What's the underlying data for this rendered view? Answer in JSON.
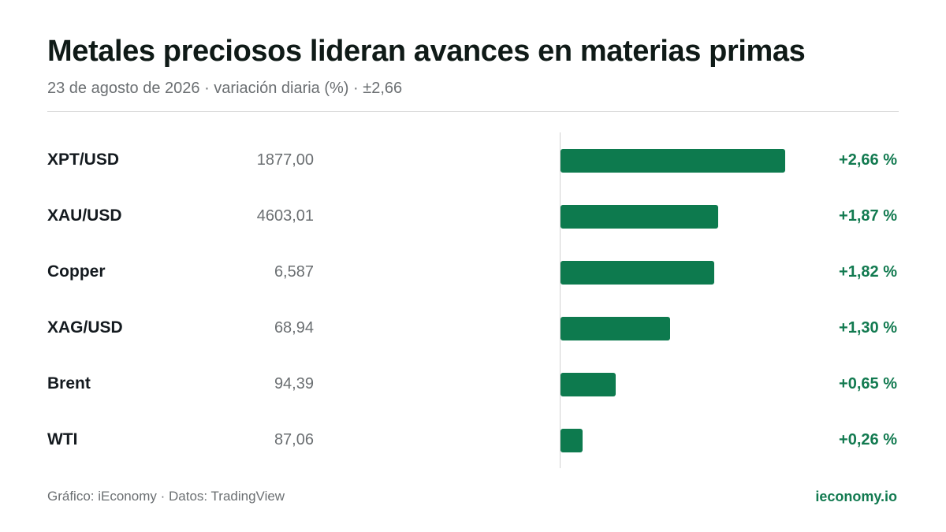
{
  "header": {
    "title": "Metales preciosos lideran avances en materias primas",
    "subtitle": "23 de agosto de 2026 · variación diaria (%) · ±2,66"
  },
  "chart_data": {
    "type": "bar",
    "orientation": "horizontal",
    "categories": [
      "XPT/USD",
      "XAU/USD",
      "Copper",
      "XAG/USD",
      "Brent",
      "WTI"
    ],
    "prices": [
      "1877,00",
      "4603,01",
      "6,587",
      "68,94",
      "94,39",
      "87,06"
    ],
    "values": [
      2.66,
      1.87,
      1.82,
      1.3,
      0.65,
      0.26
    ],
    "value_labels": [
      "+2,66 %",
      "+1,87 %",
      "+1,82 %",
      "+1,30 %",
      "+0,65 %",
      "+0,26 %"
    ],
    "xlim": [
      0,
      2.66
    ],
    "title": "Metales preciosos lideran avances en materias primas",
    "xlabel": "",
    "ylabel": "",
    "grid": false,
    "legend": "none",
    "colors": {
      "positive": "#0d7a4e",
      "label_positive": "#127a50"
    }
  },
  "footer": {
    "source": "Gráfico: iEconomy · Datos: TradingView",
    "brand": "ieconomy.io"
  }
}
